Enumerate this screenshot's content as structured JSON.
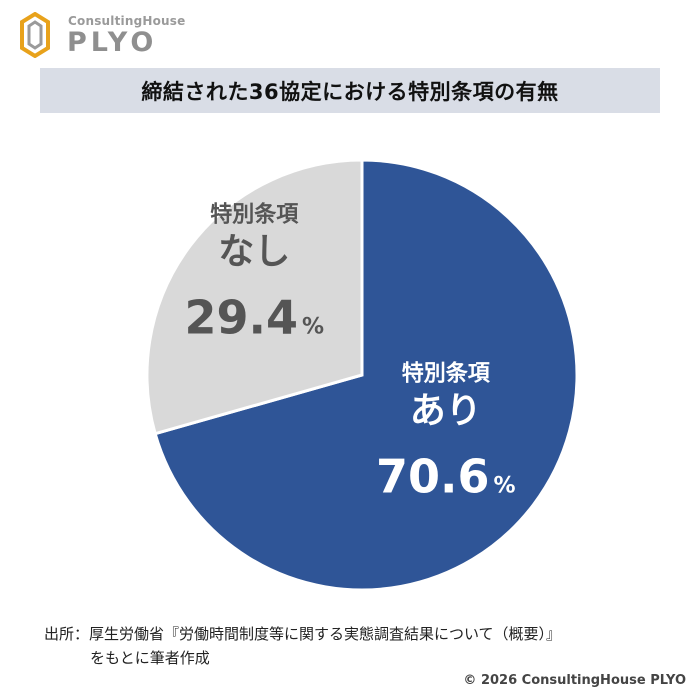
{
  "logo": {
    "small_text": "ConsultingHouse",
    "big_text": "PLYO",
    "mark_icon": "hexagon-logo-icon"
  },
  "title": "締結された36協定における特別条項の有無",
  "colors": {
    "yes_slice": "#2f5597",
    "no_slice": "#d9d9d9",
    "yes_text": "#ffffff",
    "no_text": "#555555",
    "title_bg": "#d9dde6"
  },
  "chart_data": {
    "type": "pie",
    "title": "締結された36協定における特別条項の有無",
    "slices": [
      {
        "line1": "特別条項",
        "line2": "あり",
        "value": 70.6,
        "value_text": "70.6",
        "unit": "%"
      },
      {
        "line1": "特別条項",
        "line2": "なし",
        "value": 29.4,
        "value_text": "29.4",
        "unit": "%"
      }
    ]
  },
  "source": {
    "line1": "出所：厚生労働省『労働時間制度等に関する実態調査結果について（概要）』",
    "line2": "をもとに筆者作成"
  },
  "copyright": "© 2026 ConsultingHouse PLYO"
}
